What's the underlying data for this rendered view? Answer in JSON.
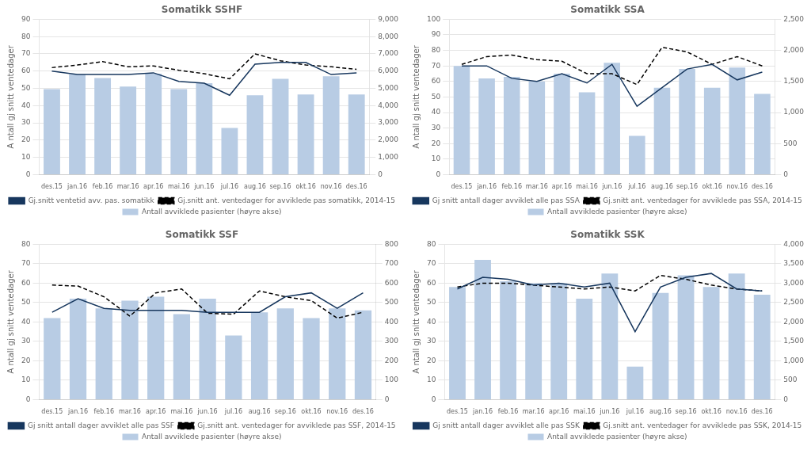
{
  "chart_data": [
    {
      "type": "bar",
      "title": "Somatikk SSHF",
      "ylabel": "A ntall gj snitt ventedager",
      "categories": [
        "des.15",
        "jan.16",
        "feb.16",
        "mar.16",
        "apr.16",
        "mai.16",
        "jun.16",
        "jul.16",
        "aug.16",
        "sep.16",
        "okt.16",
        "nov.16",
        "des.16"
      ],
      "series": [
        {
          "name": "Antall avviklede pasienter (høyre akse)",
          "type": "bar",
          "axis": "y2",
          "color": "#b8cce4",
          "values": [
            4950,
            5800,
            5600,
            5100,
            5850,
            4950,
            5300,
            2700,
            4600,
            5550,
            4650,
            5700,
            4650
          ]
        },
        {
          "name": "Gj.snitt ventetid avv. pas. somatikk",
          "type": "line",
          "line_style": "solid",
          "color": "#17375e",
          "values": [
            60,
            58,
            58,
            58,
            59,
            54,
            53,
            46,
            64,
            65,
            65,
            58,
            59
          ]
        },
        {
          "name": "Gj.snitt ant. ventedager for avviklede pas somatikk, 2014-15",
          "type": "line",
          "line_style": "dashed",
          "color": "#000000",
          "values": [
            62,
            63.5,
            65.5,
            62.5,
            63,
            60.5,
            58.5,
            55.5,
            70,
            66,
            63.5,
            62.5,
            61
          ]
        }
      ],
      "ylim": [
        0,
        90
      ],
      "yticks": [
        0,
        10,
        20,
        30,
        40,
        50,
        60,
        70,
        80,
        90
      ],
      "y2lim": [
        0,
        9000
      ],
      "y2ticks": [
        0,
        1000,
        2000,
        3000,
        4000,
        5000,
        6000,
        7000,
        8000,
        9000
      ],
      "grid": true,
      "legend": "bottom"
    },
    {
      "type": "bar",
      "title": "Somatikk SSA",
      "ylabel": "A ntall gj snitt ventedager",
      "categories": [
        "des.15",
        "jan.16",
        "feb.16",
        "mar.16",
        "apr.16",
        "mai.16",
        "jun.16",
        "jul.16",
        "aug.16",
        "sep.16",
        "okt.16",
        "nov.16",
        "des.16"
      ],
      "series": [
        {
          "name": "Antall avviklede pasienter (høyre akse)",
          "type": "bar",
          "axis": "y2",
          "color": "#b8cce4",
          "values": [
            1750,
            1550,
            1575,
            1500,
            1625,
            1325,
            1800,
            625,
            1400,
            1700,
            1400,
            1725,
            1300
          ]
        },
        {
          "name": "Gj snitt antall dager avviklet alle pas SSA",
          "type": "line",
          "line_style": "solid",
          "color": "#17375e",
          "values": [
            70,
            70,
            62,
            60,
            65,
            59,
            71,
            44,
            56,
            68,
            71,
            61,
            66
          ]
        },
        {
          "name": "Gj.snitt ant. ventedager for avviklede pas SSA, 2014-15",
          "type": "line",
          "line_style": "dashed",
          "color": "#000000",
          "values": [
            71,
            76,
            77,
            74,
            73,
            65,
            65,
            58,
            82,
            79,
            71,
            76,
            70
          ]
        }
      ],
      "ylim": [
        0,
        100
      ],
      "yticks": [
        0,
        10,
        20,
        30,
        40,
        50,
        60,
        70,
        80,
        90,
        100
      ],
      "y2lim": [
        0,
        2500
      ],
      "y2ticks": [
        0,
        500,
        1000,
        1500,
        2000,
        2500
      ],
      "grid": true,
      "legend": "bottom"
    },
    {
      "type": "bar",
      "title": "Somatikk SSF",
      "ylabel": "A ntall gj snitt ventedager",
      "categories": [
        "des.15",
        "jan.16",
        "feb.16",
        "mar.16",
        "apr.16",
        "mai.16",
        "jun.16",
        "jul.16",
        "aug.16",
        "sep.16",
        "okt.16",
        "nov.16",
        "des.16"
      ],
      "series": [
        {
          "name": "Antall avviklede pasienter (høyre akse)",
          "type": "bar",
          "axis": "y2",
          "color": "#b8cce4",
          "values": [
            420,
            520,
            470,
            510,
            530,
            440,
            520,
            330,
            450,
            470,
            420,
            470,
            460
          ]
        },
        {
          "name": "Gj snitt antall dager avviklet alle pas SSF",
          "type": "line",
          "line_style": "solid",
          "color": "#17375e",
          "values": [
            45,
            52,
            47,
            46,
            46,
            46,
            45,
            45,
            45,
            53,
            55,
            47,
            55
          ]
        },
        {
          "name": "Gj.snitt ant. ventedager for avviklede pas SSF, 2014-15",
          "type": "line",
          "line_style": "dashed",
          "color": "#000000",
          "values": [
            59,
            58.5,
            53,
            43,
            55,
            57,
            44.5,
            44,
            56,
            53,
            51,
            42,
            45
          ]
        }
      ],
      "ylim": [
        0,
        80
      ],
      "yticks": [
        0,
        10,
        20,
        30,
        40,
        50,
        60,
        70,
        80
      ],
      "y2lim": [
        0,
        800
      ],
      "y2ticks": [
        0,
        100,
        200,
        300,
        400,
        500,
        600,
        700,
        800
      ],
      "grid": true,
      "legend": "bottom"
    },
    {
      "type": "bar",
      "title": "Somatikk SSK",
      "ylabel": "A ntall gj snitt ventedager",
      "categories": [
        "des.15",
        "jan.16",
        "feb.16",
        "mar.16",
        "apr.16",
        "mai.16",
        "jun.16",
        "jul.16",
        "aug.16",
        "sep.16",
        "okt.16",
        "nov.16",
        "des.16"
      ],
      "series": [
        {
          "name": "Antall avviklede pasienter (høyre akse)",
          "type": "bar",
          "axis": "y2",
          "color": "#b8cce4",
          "values": [
            2900,
            3600,
            3050,
            3000,
            3000,
            2600,
            3250,
            850,
            2750,
            3200,
            2900,
            3250,
            2700
          ]
        },
        {
          "name": "Gj snitt antall dager avviklet alle pas SSK",
          "type": "line",
          "line_style": "solid",
          "color": "#17375e",
          "values": [
            57,
            63,
            62,
            59,
            60,
            58,
            60,
            35,
            58,
            63,
            65,
            57,
            56
          ]
        },
        {
          "name": "Gj.snitt ant. ventedager for avviklede pas SSK, 2014-15",
          "type": "line",
          "line_style": "dashed",
          "color": "#000000",
          "values": [
            58,
            60,
            60,
            59,
            58,
            57,
            58,
            56,
            64,
            62,
            59,
            57,
            56
          ]
        }
      ],
      "ylim": [
        0,
        80
      ],
      "yticks": [
        0,
        10,
        20,
        30,
        40,
        50,
        60,
        70,
        80
      ],
      "y2lim": [
        0,
        4000
      ],
      "y2ticks": [
        0,
        500,
        1000,
        1500,
        2000,
        2500,
        3000,
        3500,
        4000
      ],
      "grid": true,
      "legend": "bottom"
    }
  ]
}
